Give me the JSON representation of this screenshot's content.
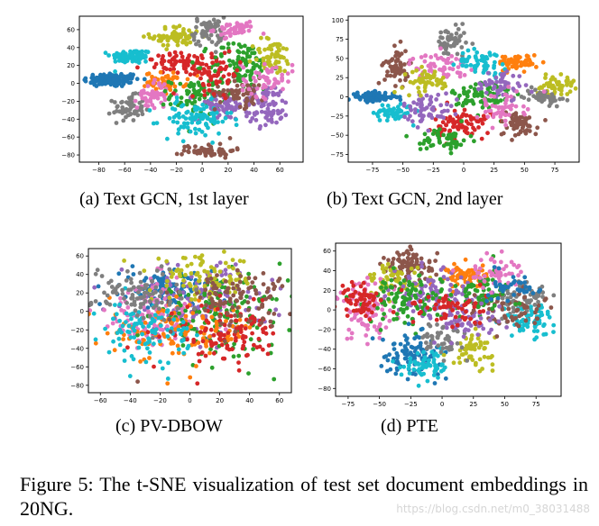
{
  "palette": [
    "#1f77b4",
    "#ff7f0e",
    "#2ca02c",
    "#d62728",
    "#9467bd",
    "#8c564b",
    "#e377c2",
    "#7f7f7f",
    "#bcbd22",
    "#17becf"
  ],
  "chart_data": [
    {
      "type": "scatter",
      "label": "(a)",
      "title": "Text GCN, 1st layer",
      "xlim": [
        -95,
        78
      ],
      "ylim": [
        -88,
        75
      ],
      "xticks": [
        -80,
        -60,
        -40,
        -20,
        0,
        20,
        40,
        60
      ],
      "yticks": [
        -80,
        -60,
        -40,
        -20,
        0,
        20,
        40,
        60
      ],
      "clusters": [
        {
          "c": 0,
          "x": -70,
          "y": 4,
          "sx": 11,
          "sy": 4,
          "n": 120
        },
        {
          "c": 9,
          "x": -55,
          "y": 30,
          "sx": 8,
          "sy": 4,
          "n": 80
        },
        {
          "c": 7,
          "x": -57,
          "y": -28,
          "sx": 6,
          "sy": 7,
          "n": 60
        },
        {
          "c": 8,
          "x": -20,
          "y": 52,
          "sx": 10,
          "sy": 6,
          "n": 70
        },
        {
          "c": 7,
          "x": 5,
          "y": 58,
          "sx": 6,
          "sy": 8,
          "n": 60
        },
        {
          "c": 6,
          "x": 25,
          "y": 60,
          "sx": 8,
          "sy": 4,
          "n": 50
        },
        {
          "c": 3,
          "x": -15,
          "y": 22,
          "sx": 15,
          "sy": 6,
          "n": 70
        },
        {
          "c": 1,
          "x": -28,
          "y": 2,
          "sx": 8,
          "sy": 5,
          "n": 55
        },
        {
          "c": 6,
          "x": -38,
          "y": -12,
          "sx": 6,
          "sy": 8,
          "n": 50
        },
        {
          "c": 2,
          "x": -5,
          "y": -15,
          "sx": 10,
          "sy": 10,
          "n": 75
        },
        {
          "c": 4,
          "x": 15,
          "y": -25,
          "sx": 10,
          "sy": 8,
          "n": 70
        },
        {
          "c": 9,
          "x": -5,
          "y": -40,
          "sx": 14,
          "sy": 10,
          "n": 90
        },
        {
          "c": 5,
          "x": 5,
          "y": -75,
          "sx": 10,
          "sy": 4,
          "n": 55
        },
        {
          "c": 2,
          "x": 30,
          "y": 20,
          "sx": 12,
          "sy": 14,
          "n": 100
        },
        {
          "c": 8,
          "x": 55,
          "y": 30,
          "sx": 8,
          "sy": 10,
          "n": 60
        },
        {
          "c": 4,
          "x": 50,
          "y": -25,
          "sx": 9,
          "sy": 12,
          "n": 80
        },
        {
          "c": 5,
          "x": 30,
          "y": -10,
          "sx": 10,
          "sy": 8,
          "n": 60
        },
        {
          "c": 6,
          "x": 50,
          "y": 5,
          "sx": 10,
          "sy": 10,
          "n": 55
        },
        {
          "c": 3,
          "x": 10,
          "y": 10,
          "sx": 10,
          "sy": 10,
          "n": 60
        }
      ]
    },
    {
      "type": "scatter",
      "label": "(b)",
      "title": "Text GCN, 2nd layer",
      "xlim": [
        -95,
        95
      ],
      "ylim": [
        -85,
        105
      ],
      "xticks": [
        -75,
        -50,
        -25,
        0,
        25,
        50,
        75
      ],
      "yticks": [
        -75,
        -50,
        -25,
        0,
        25,
        50,
        75,
        100
      ],
      "clusters": [
        {
          "c": 0,
          "x": -75,
          "y": 0,
          "sx": 10,
          "sy": 3,
          "n": 90
        },
        {
          "c": 9,
          "x": -58,
          "y": -20,
          "sx": 8,
          "sy": 6,
          "n": 60
        },
        {
          "c": 5,
          "x": -55,
          "y": 40,
          "sx": 5,
          "sy": 12,
          "n": 60
        },
        {
          "c": 7,
          "x": -10,
          "y": 70,
          "sx": 6,
          "sy": 10,
          "n": 60
        },
        {
          "c": 1,
          "x": 45,
          "y": 45,
          "sx": 8,
          "sy": 5,
          "n": 60
        },
        {
          "c": 8,
          "x": 75,
          "y": 15,
          "sx": 8,
          "sy": 6,
          "n": 55
        },
        {
          "c": 7,
          "x": 65,
          "y": 0,
          "sx": 8,
          "sy": 5,
          "n": 50
        },
        {
          "c": 6,
          "x": -20,
          "y": 40,
          "sx": 12,
          "sy": 8,
          "n": 60
        },
        {
          "c": 2,
          "x": 15,
          "y": 0,
          "sx": 12,
          "sy": 12,
          "n": 80
        },
        {
          "c": 3,
          "x": 0,
          "y": -35,
          "sx": 12,
          "sy": 10,
          "n": 80
        },
        {
          "c": 4,
          "x": -30,
          "y": -15,
          "sx": 10,
          "sy": 10,
          "n": 60
        },
        {
          "c": 5,
          "x": 45,
          "y": -35,
          "sx": 8,
          "sy": 8,
          "n": 60
        },
        {
          "c": 8,
          "x": -30,
          "y": 20,
          "sx": 10,
          "sy": 8,
          "n": 50
        },
        {
          "c": 9,
          "x": 15,
          "y": 45,
          "sx": 10,
          "sy": 8,
          "n": 55
        },
        {
          "c": 4,
          "x": 30,
          "y": 15,
          "sx": 10,
          "sy": 10,
          "n": 55
        },
        {
          "c": 2,
          "x": -15,
          "y": -55,
          "sx": 10,
          "sy": 8,
          "n": 55
        },
        {
          "c": 6,
          "x": 30,
          "y": -15,
          "sx": 10,
          "sy": 10,
          "n": 50
        }
      ]
    },
    {
      "type": "scatter",
      "label": "(c)",
      "title": "PV-DBOW",
      "xlim": [
        -68,
        68
      ],
      "ylim": [
        -88,
        68
      ],
      "xticks": [
        -60,
        -40,
        -20,
        0,
        20,
        40,
        60
      ],
      "yticks": [
        -80,
        -60,
        -40,
        -20,
        0,
        20,
        40,
        60
      ],
      "clusters": [
        {
          "c": 0,
          "x": -15,
          "y": 25,
          "sx": 15,
          "sy": 10,
          "n": 120
        },
        {
          "c": 4,
          "x": 5,
          "y": 10,
          "sx": 25,
          "sy": 20,
          "n": 160
        },
        {
          "c": 6,
          "x": -25,
          "y": -5,
          "sx": 20,
          "sy": 20,
          "n": 120
        },
        {
          "c": 2,
          "x": 20,
          "y": -5,
          "sx": 22,
          "sy": 20,
          "n": 140
        },
        {
          "c": 8,
          "x": 10,
          "y": 35,
          "sx": 18,
          "sy": 12,
          "n": 100
        },
        {
          "c": 1,
          "x": -5,
          "y": -20,
          "sx": 25,
          "sy": 15,
          "n": 120
        },
        {
          "c": 3,
          "x": 25,
          "y": -25,
          "sx": 20,
          "sy": 15,
          "n": 110
        },
        {
          "c": 9,
          "x": -30,
          "y": -20,
          "sx": 15,
          "sy": 15,
          "n": 100
        },
        {
          "c": 5,
          "x": 30,
          "y": 15,
          "sx": 18,
          "sy": 15,
          "n": 100
        },
        {
          "c": 7,
          "x": -35,
          "y": 20,
          "sx": 15,
          "sy": 15,
          "n": 90
        }
      ],
      "outliers": [
        {
          "c": 9,
          "x": -40,
          "y": -70
        },
        {
          "c": 5,
          "x": -35,
          "y": -76
        },
        {
          "c": 1,
          "x": -15,
          "y": -78
        },
        {
          "c": 3,
          "x": 5,
          "y": -78
        }
      ]
    },
    {
      "type": "scatter",
      "label": "(d)",
      "title": "PTE",
      "xlim": [
        -85,
        95
      ],
      "ylim": [
        -88,
        68
      ],
      "xticks": [
        -75,
        -50,
        -25,
        0,
        25,
        50,
        75
      ],
      "yticks": [
        -80,
        -60,
        -40,
        -20,
        0,
        20,
        40,
        60
      ],
      "clusters": [
        {
          "c": 5,
          "x": -25,
          "y": 45,
          "sx": 10,
          "sy": 8,
          "n": 90
        },
        {
          "c": 1,
          "x": 20,
          "y": 35,
          "sx": 8,
          "sy": 6,
          "n": 70
        },
        {
          "c": 8,
          "x": -40,
          "y": 30,
          "sx": 10,
          "sy": 8,
          "n": 60
        },
        {
          "c": 6,
          "x": -60,
          "y": 0,
          "sx": 12,
          "sy": 15,
          "n": 90
        },
        {
          "c": 4,
          "x": -5,
          "y": 15,
          "sx": 18,
          "sy": 12,
          "n": 100
        },
        {
          "c": 2,
          "x": -30,
          "y": 10,
          "sx": 15,
          "sy": 12,
          "n": 100
        },
        {
          "c": 3,
          "x": -65,
          "y": 10,
          "sx": 8,
          "sy": 10,
          "n": 60
        },
        {
          "c": 7,
          "x": 65,
          "y": 10,
          "sx": 10,
          "sy": 10,
          "n": 70
        },
        {
          "c": 9,
          "x": 70,
          "y": -10,
          "sx": 10,
          "sy": 8,
          "n": 70
        },
        {
          "c": 0,
          "x": -25,
          "y": -45,
          "sx": 12,
          "sy": 10,
          "n": 100
        },
        {
          "c": 9,
          "x": -10,
          "y": -55,
          "sx": 10,
          "sy": 8,
          "n": 60
        },
        {
          "c": 8,
          "x": 25,
          "y": -40,
          "sx": 8,
          "sy": 8,
          "n": 60
        },
        {
          "c": 7,
          "x": 0,
          "y": -30,
          "sx": 10,
          "sy": 8,
          "n": 50
        },
        {
          "c": 5,
          "x": 50,
          "y": 0,
          "sx": 15,
          "sy": 10,
          "n": 60
        },
        {
          "c": 2,
          "x": 30,
          "y": 15,
          "sx": 15,
          "sy": 12,
          "n": 70
        },
        {
          "c": 4,
          "x": 20,
          "y": -10,
          "sx": 15,
          "sy": 10,
          "n": 60
        },
        {
          "c": 6,
          "x": 40,
          "y": 40,
          "sx": 10,
          "sy": 8,
          "n": 50
        },
        {
          "c": 3,
          "x": 5,
          "y": 0,
          "sx": 15,
          "sy": 10,
          "n": 60
        },
        {
          "c": 0,
          "x": 60,
          "y": 25,
          "sx": 10,
          "sy": 8,
          "n": 40
        }
      ]
    }
  ],
  "subcaptions": [
    "(a)  Text GCN, 1st layer",
    "(b)  Text GCN, 2nd layer",
    "(c)  PV-DBOW",
    "(d)  PTE"
  ],
  "figure_caption": "Figure 5: The t-SNE visualization of test set document embeddings in 20NG.",
  "watermark": "https://blog.csdn.net/m0_38031488"
}
